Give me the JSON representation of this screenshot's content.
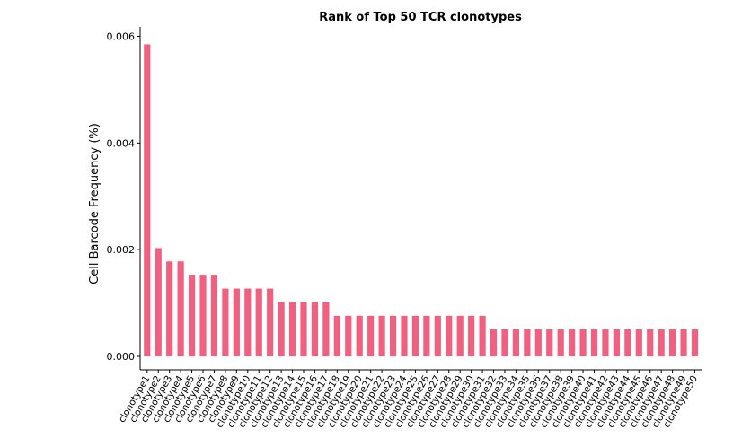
{
  "chart_data": {
    "type": "bar",
    "title": "Rank of Top 50 TCR clonotypes",
    "xlabel": "",
    "ylabel": "Cell Barcode Frequency (%)",
    "ylim": [
      0,
      0.0062
    ],
    "yticks": [
      "0.000",
      "0.002",
      "0.004",
      "0.006"
    ],
    "ytick_values": [
      0,
      0.002,
      0.004,
      0.006
    ],
    "bar_color": "#f06080",
    "grid": false,
    "categories": [
      "clonotype1",
      "clonotype2",
      "clonotype3",
      "clonotype4",
      "clonotype5",
      "clonotype6",
      "clonotype7",
      "clonotype8",
      "clonotype9",
      "clonotype10",
      "clonotype11",
      "clonotype12",
      "clonotype13",
      "clonotype14",
      "clonotype15",
      "clonotype16",
      "clonotype17",
      "clonotype18",
      "clonotype19",
      "clonotype20",
      "clonotype21",
      "clonotype22",
      "clonotype23",
      "clonotype24",
      "clonotype25",
      "clonotype26",
      "clonotype27",
      "clonotype28",
      "clonotype29",
      "clonotype30",
      "clonotype31",
      "clonotype32",
      "clonotype33",
      "clonotype34",
      "clonotype35",
      "clonotype36",
      "clonotype37",
      "clonotype38",
      "clonotype39",
      "clonotype40",
      "clonotype41",
      "clonotype42",
      "clonotype43",
      "clonotype44",
      "clonotype45",
      "clonotype46",
      "clonotype47",
      "clonotype48",
      "clonotype49",
      "clonotype50"
    ],
    "values": [
      0.00585,
      0.00203,
      0.00178,
      0.00178,
      0.00153,
      0.00153,
      0.00153,
      0.00127,
      0.00127,
      0.00127,
      0.00127,
      0.00127,
      0.00102,
      0.00102,
      0.00102,
      0.00102,
      0.00102,
      0.00076,
      0.00076,
      0.00076,
      0.00076,
      0.00076,
      0.00076,
      0.00076,
      0.00076,
      0.00076,
      0.00076,
      0.00076,
      0.00076,
      0.00076,
      0.00076,
      0.00051,
      0.00051,
      0.00051,
      0.00051,
      0.00051,
      0.00051,
      0.00051,
      0.00051,
      0.00051,
      0.00051,
      0.00051,
      0.00051,
      0.00051,
      0.00051,
      0.00051,
      0.00051,
      0.00051,
      0.00051,
      0.00051
    ]
  }
}
